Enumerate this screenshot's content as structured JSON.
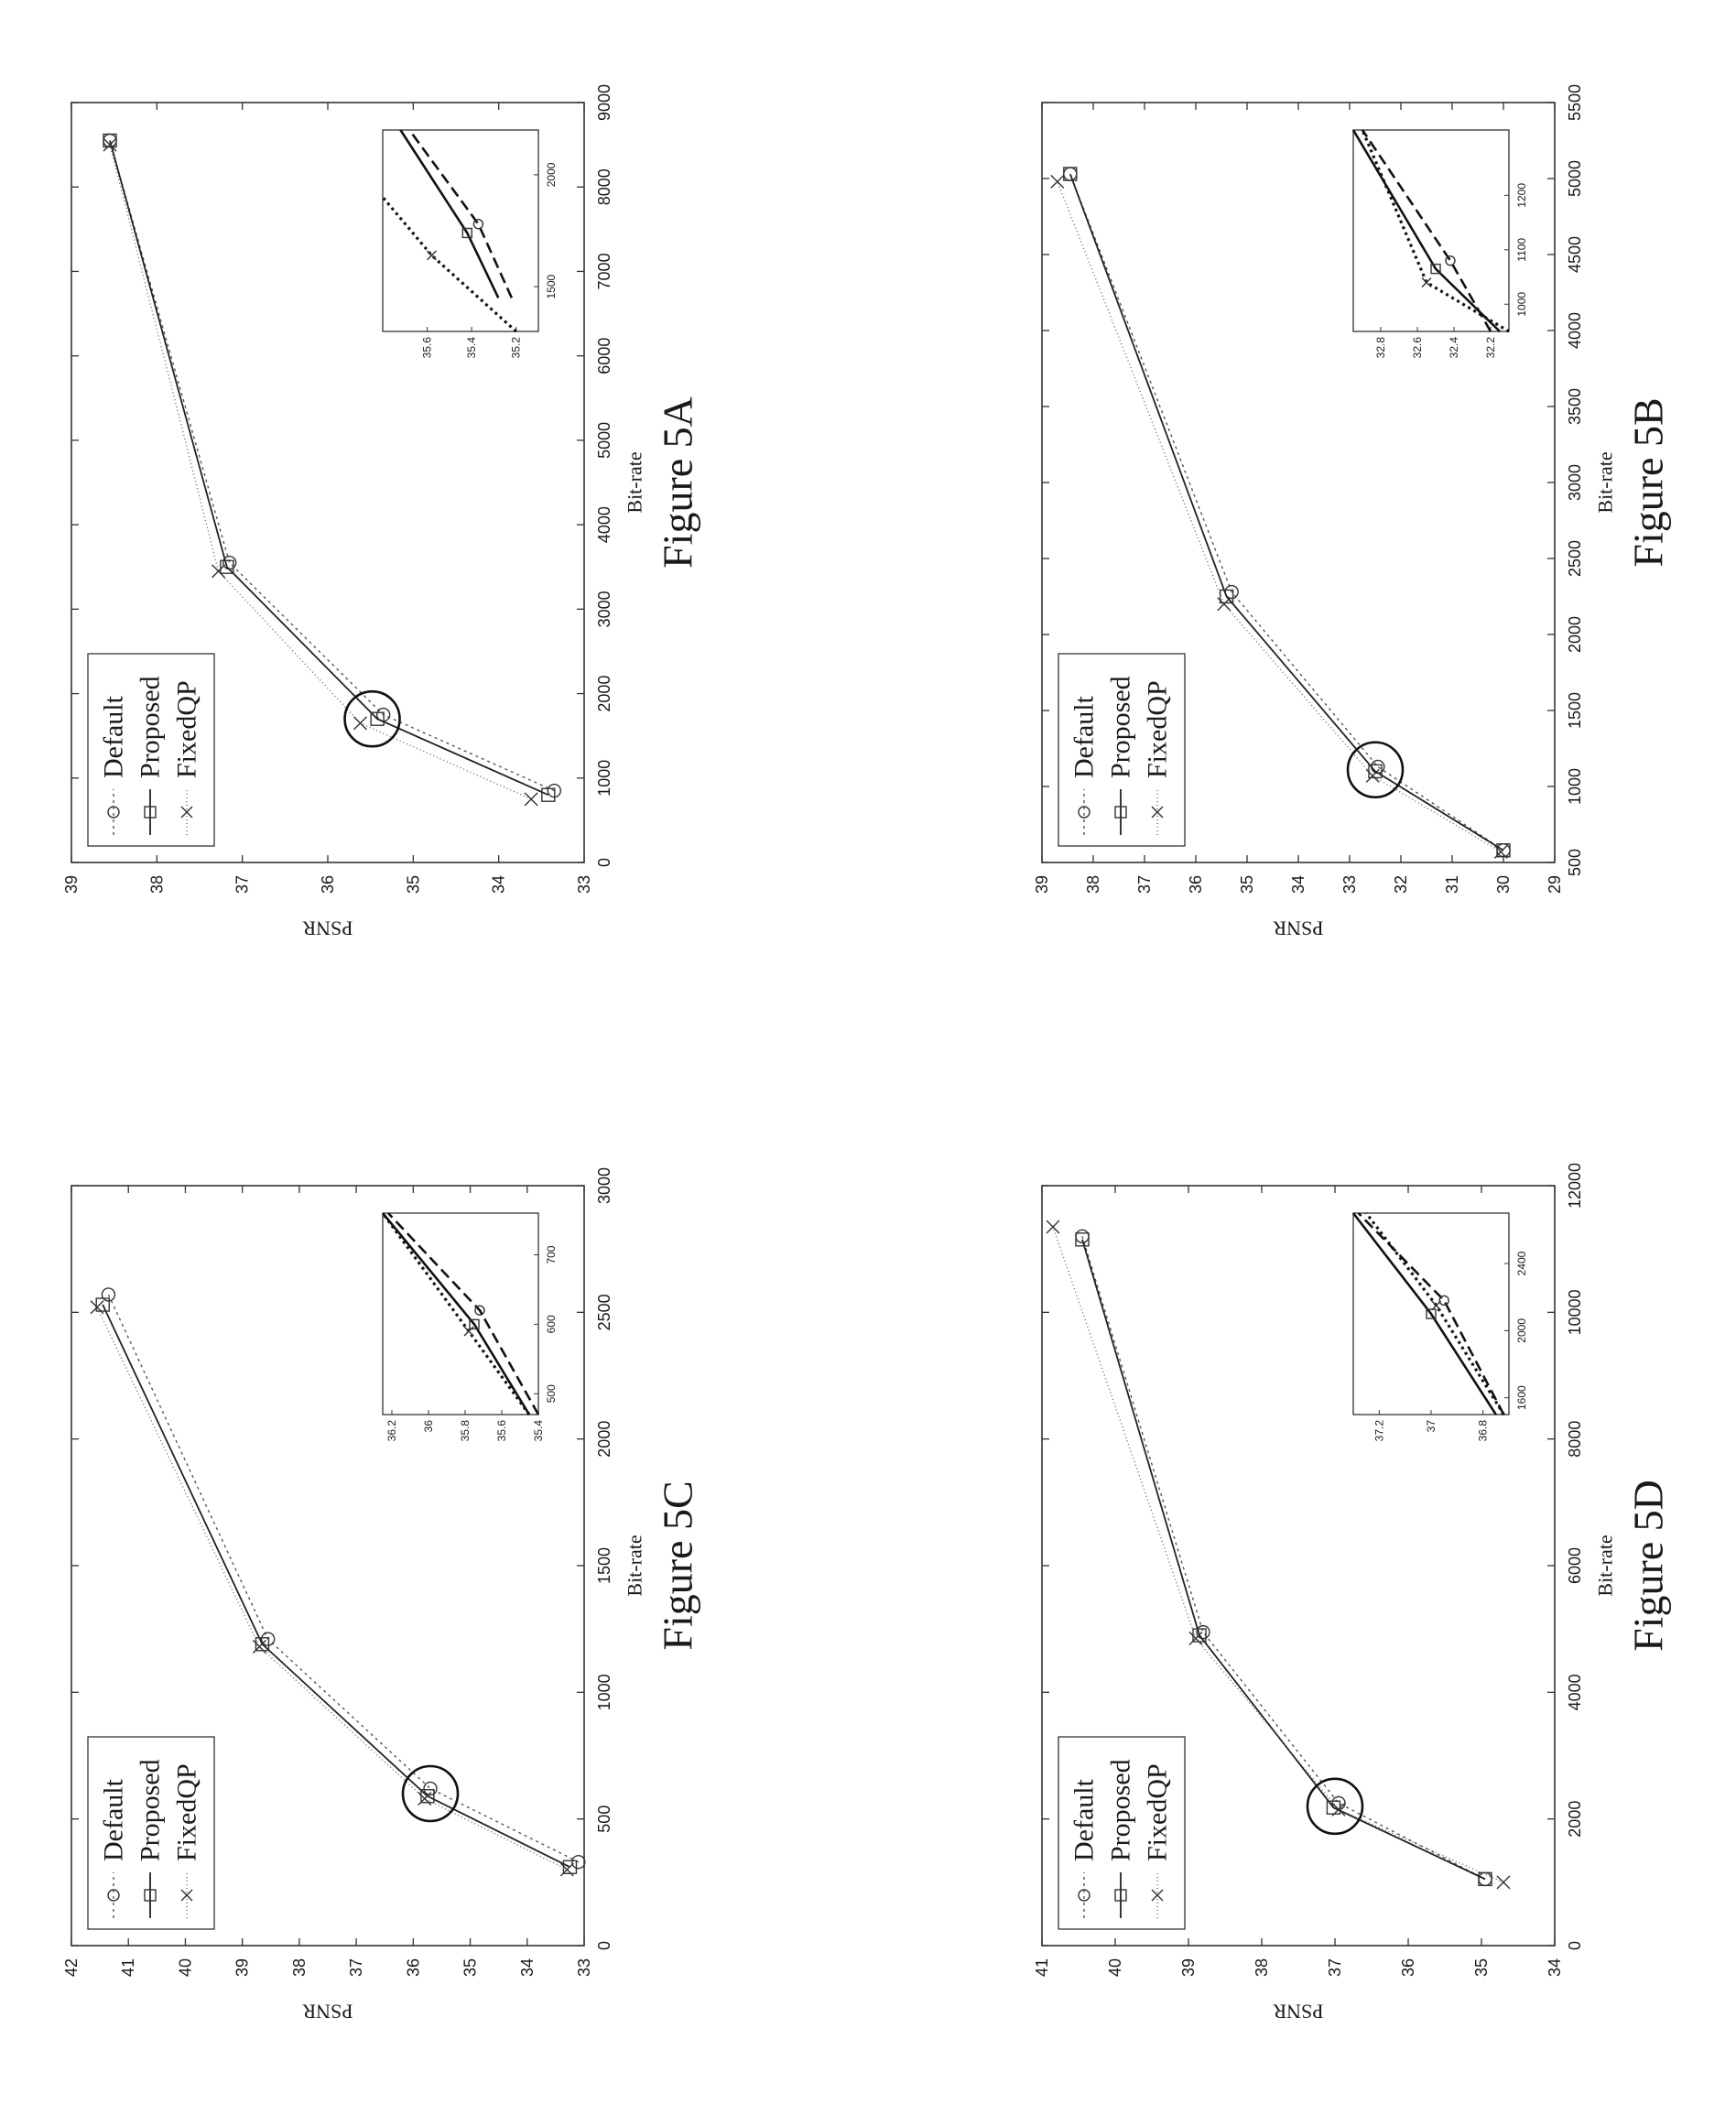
{
  "figures": [
    {
      "caption": "Figure 5A",
      "chart_data": {
        "type": "line",
        "xlabel": "Bit-rate",
        "ylabel": "PSNR",
        "xlim": [
          0,
          9000
        ],
        "ylim": [
          33,
          39
        ],
        "xticks": [
          0,
          1000,
          2000,
          3000,
          4000,
          5000,
          6000,
          7000,
          8000,
          9000
        ],
        "yticks": [
          33,
          34,
          35,
          36,
          37,
          38,
          39
        ],
        "legend": "top-left",
        "series": [
          {
            "name": "Default",
            "style": "dotted",
            "marker": "circle",
            "x": [
              850,
              1750,
              3550,
              8550
            ],
            "y": [
              33.35,
              35.35,
              37.15,
              38.55
            ]
          },
          {
            "name": "Proposed",
            "style": "solid",
            "marker": "square",
            "x": [
              800,
              1700,
              3500,
              8550
            ],
            "y": [
              33.42,
              35.42,
              37.18,
              38.55
            ]
          },
          {
            "name": "FixedQP",
            "style": "dotted",
            "marker": "x",
            "x": [
              750,
              1650,
              3450,
              8500
            ],
            "y": [
              33.62,
              35.62,
              37.28,
              38.55
            ]
          }
        ],
        "highlight": {
          "x": 1700,
          "y": 35.48
        },
        "inset": {
          "xlim": [
            1300,
            2200
          ],
          "ylim": [
            35.1,
            35.8
          ],
          "xticks": [
            1500,
            2000
          ],
          "yticks": [
            35.2,
            35.4,
            35.6
          ],
          "series": [
            {
              "name": "Default",
              "x": [
                1450,
                1780,
                2200
              ],
              "y": [
                35.22,
                35.37,
                35.68
              ]
            },
            {
              "name": "Proposed",
              "x": [
                1450,
                1740,
                2200
              ],
              "y": [
                35.28,
                35.42,
                35.72
              ]
            },
            {
              "name": "FixedQP",
              "x": [
                1300,
                1640,
                1900
              ],
              "y": [
                35.2,
                35.58,
                35.8
              ]
            }
          ]
        }
      }
    },
    {
      "caption": "Figure 5B",
      "chart_data": {
        "type": "line",
        "xlabel": "Bit-rate",
        "ylabel": "PSNR",
        "xlim": [
          500,
          5500
        ],
        "ylim": [
          29,
          39
        ],
        "xticks": [
          500,
          1000,
          1500,
          2000,
          2500,
          3000,
          3500,
          4000,
          4500,
          5000,
          5500
        ],
        "yticks": [
          29,
          30,
          31,
          32,
          33,
          34,
          35,
          36,
          37,
          38,
          39
        ],
        "legend": "top-left",
        "series": [
          {
            "name": "Default",
            "style": "dotted",
            "marker": "circle",
            "x": [
              580,
              1130,
              2280,
              5030
            ],
            "y": [
              30.0,
              32.45,
              35.3,
              38.45
            ]
          },
          {
            "name": "Proposed",
            "style": "solid",
            "marker": "square",
            "x": [
              580,
              1100,
              2250,
              5030
            ],
            "y": [
              30.0,
              32.5,
              35.4,
              38.45
            ]
          },
          {
            "name": "FixedQP",
            "style": "dotted",
            "marker": "x",
            "x": [
              570,
              1070,
              2200,
              4980
            ],
            "y": [
              30.05,
              32.55,
              35.45,
              38.7
            ]
          }
        ],
        "highlight": {
          "x": 1110,
          "y": 32.5
        },
        "inset": {
          "xlim": [
            950,
            1320
          ],
          "ylim": [
            32.1,
            32.95
          ],
          "xticks": [
            1000,
            1100,
            1200
          ],
          "yticks": [
            32.2,
            32.4,
            32.6,
            32.8
          ],
          "series": [
            {
              "name": "Default",
              "x": [
                950,
                1080,
                1320
              ],
              "y": [
                32.2,
                32.42,
                32.9
              ]
            },
            {
              "name": "Proposed",
              "x": [
                950,
                1065,
                1320
              ],
              "y": [
                32.15,
                32.5,
                32.95
              ]
            },
            {
              "name": "FixedQP",
              "x": [
                950,
                1040,
                1320
              ],
              "y": [
                32.1,
                32.55,
                32.9
              ]
            }
          ]
        }
      }
    },
    {
      "caption": "Figure 5C",
      "chart_data": {
        "type": "line",
        "xlabel": "Bit-rate",
        "ylabel": "PSNR",
        "xlim": [
          0,
          3000
        ],
        "ylim": [
          33,
          42
        ],
        "xticks": [
          0,
          500,
          1000,
          1500,
          2000,
          2500,
          3000
        ],
        "yticks": [
          33,
          34,
          35,
          36,
          37,
          38,
          39,
          40,
          41,
          42
        ],
        "legend": "top-left",
        "series": [
          {
            "name": "Default",
            "style": "dotted",
            "marker": "circle",
            "x": [
              330,
              620,
              1210,
              2570
            ],
            "y": [
              33.1,
              35.7,
              38.55,
              41.35
            ]
          },
          {
            "name": "Proposed",
            "style": "solid",
            "marker": "square",
            "x": [
              310,
              590,
              1190,
              2530
            ],
            "y": [
              33.25,
              35.75,
              38.65,
              41.45
            ]
          },
          {
            "name": "FixedQP",
            "style": "dotted",
            "marker": "x",
            "x": [
              300,
              580,
              1180,
              2520
            ],
            "y": [
              33.3,
              35.8,
              38.7,
              41.55
            ]
          }
        ],
        "highlight": {
          "x": 600,
          "y": 35.7
        },
        "inset": {
          "xlim": [
            470,
            760
          ],
          "ylim": [
            35.4,
            36.25
          ],
          "xticks": [
            500,
            600,
            700
          ],
          "yticks": [
            35.4,
            35.6,
            35.8,
            36,
            36.2
          ],
          "series": [
            {
              "name": "Default",
              "x": [
                470,
                620,
                760
              ],
              "y": [
                35.4,
                35.72,
                36.22
              ]
            },
            {
              "name": "Proposed",
              "x": [
                470,
                600,
                760
              ],
              "y": [
                35.45,
                35.75,
                36.25
              ]
            },
            {
              "name": "FixedQP",
              "x": [
                470,
                590,
                760
              ],
              "y": [
                35.45,
                35.78,
                36.25
              ]
            }
          ]
        }
      }
    },
    {
      "caption": "Figure 5D",
      "chart_data": {
        "type": "line",
        "xlabel": "Bit-rate",
        "ylabel": "PSNR",
        "xlim": [
          0,
          12000
        ],
        "ylim": [
          34,
          41
        ],
        "xticks": [
          0,
          2000,
          4000,
          6000,
          8000,
          10000,
          12000
        ],
        "yticks": [
          34,
          35,
          36,
          37,
          38,
          39,
          40,
          41
        ],
        "legend": "top-left",
        "series": [
          {
            "name": "Default",
            "style": "dotted",
            "marker": "circle",
            "x": [
              1050,
              2250,
              4950,
              11200
            ],
            "y": [
              34.95,
              36.95,
              38.8,
              40.45
            ]
          },
          {
            "name": "Proposed",
            "style": "solid",
            "marker": "square",
            "x": [
              1050,
              2180,
              4900,
              11150
            ],
            "y": [
              34.95,
              37.02,
              38.85,
              40.45
            ]
          },
          {
            "name": "FixedQP",
            "style": "dotted",
            "marker": "x",
            "x": [
              1000,
              2150,
              4850,
              11350
            ],
            "y": [
              34.7,
              36.95,
              38.9,
              40.85
            ]
          }
        ],
        "highlight": {
          "x": 2200,
          "y": 37.0
        },
        "inset": {
          "xlim": [
            1500,
            2700
          ],
          "ylim": [
            36.7,
            37.3
          ],
          "xticks": [
            1600,
            2000,
            2400
          ],
          "yticks": [
            36.8,
            37,
            37.2
          ],
          "series": [
            {
              "name": "Default",
              "x": [
                1500,
                2180,
                2700
              ],
              "y": [
                36.72,
                36.95,
                37.28
              ]
            },
            {
              "name": "Proposed",
              "x": [
                1500,
                2100,
                2700
              ],
              "y": [
                36.75,
                37.0,
                37.3
              ]
            },
            {
              "name": "FixedQP",
              "x": [
                1500,
                2150,
                2700
              ],
              "y": [
                36.72,
                36.98,
                37.25
              ]
            }
          ]
        }
      }
    }
  ]
}
